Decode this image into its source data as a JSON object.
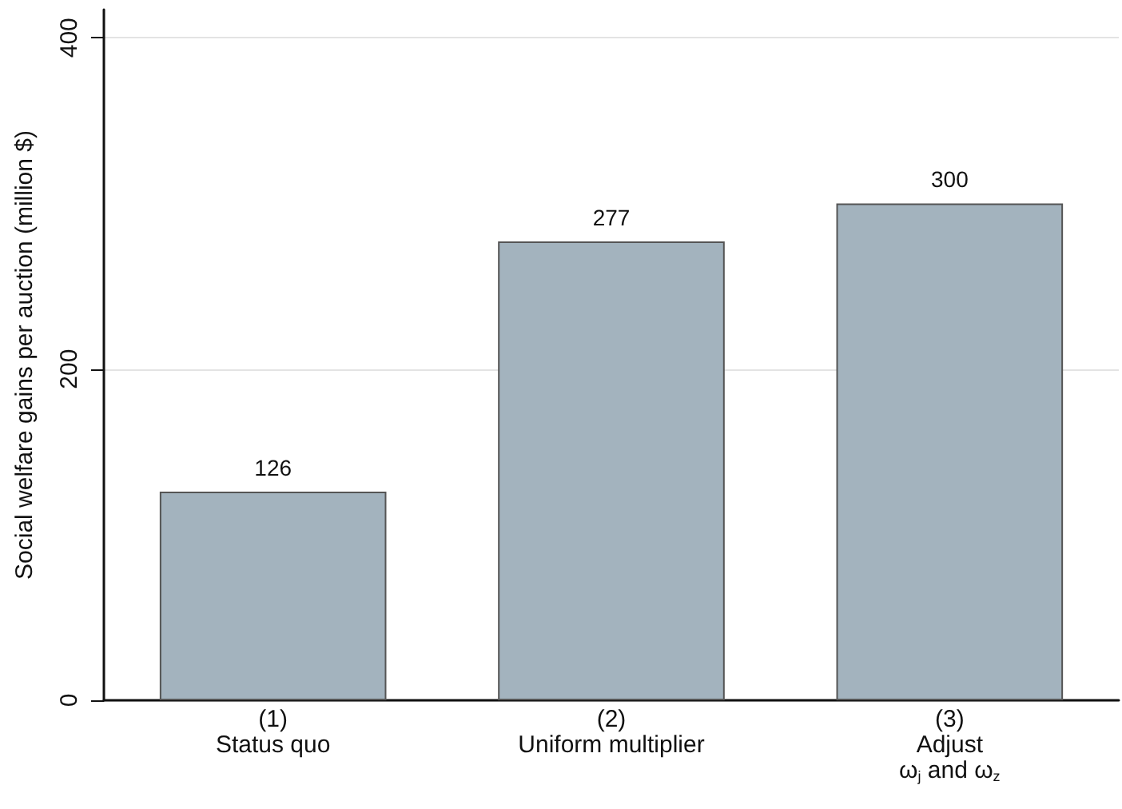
{
  "chart_data": {
    "type": "bar",
    "ylabel": "Social welfare gains per auction (million $)",
    "categories": [
      "(1)\nStatus quo",
      "(2)\nUniform multiplier",
      "(3)\nAdjust\nω$_{j}$ and ω$_{z}$"
    ],
    "values": [
      126,
      277,
      300
    ],
    "color": "#a3b3be",
    "ylim": [
      0,
      417
    ],
    "yticks": [
      0,
      200,
      400
    ],
    "grid": "y",
    "data_labels": true
  }
}
